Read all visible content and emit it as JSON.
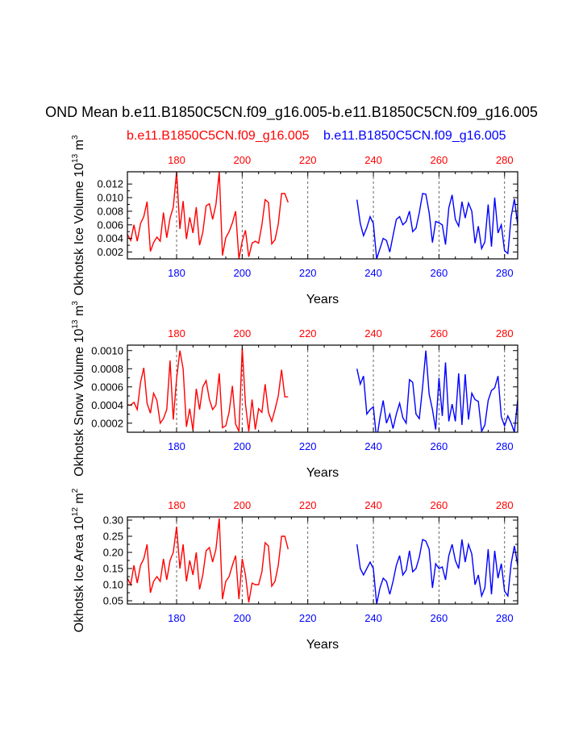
{
  "figure": {
    "title": "OND Mean b.e11.B1850C5CN.f09_g16.005-b.e11.B1850C5CN.f09_g16.005",
    "case_a_label": "b.e11.B1850C5CN.f09_g16.005",
    "case_b_label": "b.e11.B1850C5CN.f09_g16.005",
    "case_a_color": "#ff0000",
    "case_b_color": "#0000ff"
  },
  "chart_data": [
    {
      "type": "line",
      "ylabel": "Okhotsk Ice Volume 10",
      "ylabel_exp": "13",
      "ylabel_unit": "m",
      "ylabel_unit_exp": "3",
      "xlabel": "Years",
      "xlim": [
        165,
        284
      ],
      "ylim": [
        0.001,
        0.0138
      ],
      "yticks": [
        "0.002",
        "0.004",
        "0.006",
        "0.008",
        "0.010",
        "0.012"
      ],
      "bottom_ticks": [
        "180",
        "200",
        "220",
        "240",
        "260",
        "280"
      ],
      "top_ticks": [
        "180",
        "200",
        "220",
        "240",
        "260",
        "280"
      ],
      "vlines": [
        180,
        200,
        220,
        240,
        260,
        280
      ],
      "series": [
        {
          "color": "#ff0000",
          "x_start": 165,
          "values": [
            0.0046,
            0.0037,
            0.006,
            0.0036,
            0.0062,
            0.0072,
            0.0094,
            0.0021,
            0.0034,
            0.0042,
            0.0036,
            0.0078,
            0.0041,
            0.007,
            0.0086,
            0.0138,
            0.0054,
            0.0095,
            0.0039,
            0.0071,
            0.0048,
            0.0086,
            0.003,
            0.0049,
            0.0088,
            0.0091,
            0.0068,
            0.009,
            0.0138,
            0.0015,
            0.0041,
            0.005,
            0.0063,
            0.008,
            0.001,
            0.0036,
            0.0052,
            0.0013,
            0.0033,
            0.0036,
            0.0033,
            0.006,
            0.0097,
            0.0093,
            0.0032,
            0.0038,
            0.0061,
            0.0106,
            0.0106,
            0.0093
          ]
        },
        {
          "color": "#0000ff",
          "x_start": 235,
          "values": [
            0.0097,
            0.0062,
            0.0044,
            0.0056,
            0.0072,
            0.0062,
            0.001,
            0.0025,
            0.004,
            0.0037,
            0.002,
            0.0044,
            0.0068,
            0.0072,
            0.006,
            0.0065,
            0.008,
            0.005,
            0.0055,
            0.0078,
            0.0106,
            0.0105,
            0.0078,
            0.0034,
            0.0065,
            0.0063,
            0.006,
            0.0031,
            0.0085,
            0.0104,
            0.0068,
            0.0058,
            0.0094,
            0.007,
            0.0092,
            0.008,
            0.0033,
            0.0058,
            0.0025,
            0.0035,
            0.009,
            0.0028,
            0.01,
            0.0048,
            0.006,
            0.0022,
            0.0018,
            0.0072,
            0.0098,
            0.006
          ]
        }
      ]
    },
    {
      "type": "line",
      "ylabel": "Okhotsk Snow Volume 10",
      "ylabel_exp": "13",
      "ylabel_unit": "m",
      "ylabel_unit_exp": "3",
      "xlabel": "Years",
      "xlim": [
        165,
        284
      ],
      "ylim": [
        0.0001,
        0.00106
      ],
      "yticks": [
        "0.0002",
        "0.0004",
        "0.0006",
        "0.0008",
        "0.0010"
      ],
      "bottom_ticks": [
        "180",
        "200",
        "220",
        "240",
        "260",
        "280"
      ],
      "top_ticks": [
        "180",
        "200",
        "220",
        "240",
        "260",
        "280"
      ],
      "vlines": [
        180,
        200,
        220,
        240,
        260,
        280
      ],
      "series": [
        {
          "color": "#ff0000",
          "x_start": 165,
          "values": [
            0.0004,
            0.0004,
            0.00043,
            0.00035,
            0.00065,
            0.00081,
            0.00042,
            0.00031,
            0.00053,
            0.00045,
            0.0002,
            0.00025,
            0.00035,
            0.00089,
            0.00024,
            0.00069,
            0.001,
            0.0008,
            0.00016,
            0.00036,
            0.00012,
            0.00058,
            0.00035,
            0.0006,
            0.00067,
            0.00046,
            0.00035,
            0.0004,
            0.00075,
            0.00015,
            0.00017,
            0.00032,
            0.00061,
            0.00019,
            0.00011,
            0.00103,
            0.00041,
            0.00011,
            0.00046,
            0.00013,
            0.00036,
            0.00032,
            0.00063,
            0.00032,
            0.00022,
            0.00035,
            0.0005,
            0.00079,
            0.00049,
            0.00049
          ]
        },
        {
          "color": "#0000ff",
          "x_start": 235,
          "values": [
            0.0008,
            0.00063,
            0.00072,
            0.0003,
            0.00035,
            0.00038,
            2e-05,
            0.00026,
            0.00045,
            0.0002,
            0.0003,
            0.00014,
            0.0003,
            0.00042,
            0.00026,
            0.0002,
            0.00068,
            0.00065,
            0.0003,
            0.00025,
            0.0006,
            0.001,
            0.00052,
            0.00035,
            0.00013,
            0.0007,
            0.00028,
            0.00087,
            0.00022,
            0.00041,
            0.00022,
            0.00075,
            0.00018,
            0.00074,
            0.00024,
            0.00053,
            0.00046,
            0.00044,
            0.00011,
            0.00018,
            0.00045,
            0.00056,
            0.00059,
            0.00072,
            0.00027,
            0.00017,
            0.00028,
            0.0002,
            0.0001,
            0.00046,
            0.00015
          ]
        }
      ]
    },
    {
      "type": "line",
      "ylabel": "Okhotsk Ice Area 10",
      "ylabel_exp": "12",
      "ylabel_unit": "m",
      "ylabel_unit_exp": "2",
      "xlabel": "Years",
      "xlim": [
        165,
        284
      ],
      "ylim": [
        0.04,
        0.31
      ],
      "yticks": [
        "0.05",
        "0.10",
        "0.15",
        "0.20",
        "0.25",
        "0.30"
      ],
      "bottom_ticks": [
        "180",
        "200",
        "220",
        "240",
        "260",
        "280"
      ],
      "top_ticks": [
        "180",
        "200",
        "220",
        "240",
        "260",
        "280"
      ],
      "vlines": [
        180,
        200,
        220,
        240,
        260,
        280
      ],
      "series": [
        {
          "color": "#ff0000",
          "x_start": 165,
          "values": [
            0.12,
            0.1,
            0.16,
            0.105,
            0.16,
            0.18,
            0.225,
            0.075,
            0.11,
            0.125,
            0.11,
            0.18,
            0.115,
            0.175,
            0.2,
            0.28,
            0.15,
            0.225,
            0.11,
            0.175,
            0.13,
            0.2,
            0.085,
            0.13,
            0.205,
            0.215,
            0.17,
            0.21,
            0.305,
            0.055,
            0.11,
            0.125,
            0.16,
            0.19,
            0.055,
            0.18,
            0.13,
            0.045,
            0.105,
            0.1,
            0.1,
            0.14,
            0.23,
            0.22,
            0.095,
            0.11,
            0.16,
            0.25,
            0.25,
            0.21
          ]
        },
        {
          "color": "#0000ff",
          "x_start": 235,
          "values": [
            0.225,
            0.15,
            0.13,
            0.15,
            0.17,
            0.15,
            0.04,
            0.09,
            0.12,
            0.11,
            0.07,
            0.11,
            0.16,
            0.19,
            0.13,
            0.145,
            0.205,
            0.14,
            0.15,
            0.185,
            0.24,
            0.235,
            0.21,
            0.09,
            0.165,
            0.15,
            0.155,
            0.115,
            0.19,
            0.225,
            0.175,
            0.15,
            0.24,
            0.17,
            0.225,
            0.195,
            0.1,
            0.13,
            0.065,
            0.09,
            0.21,
            0.07,
            0.205,
            0.12,
            0.165,
            0.08,
            0.065,
            0.165,
            0.22,
            0.16
          ]
        }
      ]
    }
  ]
}
